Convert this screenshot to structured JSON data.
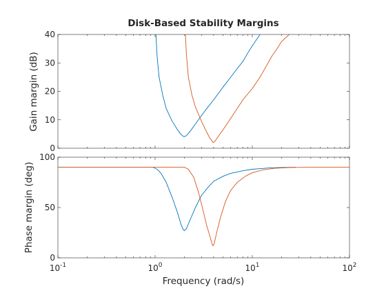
{
  "chart_data": {
    "type": "line",
    "title": "Disk-Based Stability Margins",
    "xlabel": "Frequency (rad/s)",
    "xscale": "log",
    "xlim": [
      0.1,
      100
    ],
    "x_ticks": [
      {
        "base": "10",
        "exp": "-1"
      },
      {
        "base": "10",
        "exp": "0"
      },
      {
        "base": "10",
        "exp": "1"
      },
      {
        "base": "10",
        "exp": "2"
      }
    ],
    "colors": [
      "#0072bd",
      "#d95319"
    ],
    "panels": [
      {
        "ylabel": "Gain margin (dB)",
        "ylim": [
          0,
          40
        ],
        "yticks": [
          "0",
          "10",
          "20",
          "30",
          "40"
        ],
        "series": [
          {
            "color": "#0072bd",
            "x": [
              1.02,
              1.05,
              1.1,
              1.2,
              1.3,
              1.5,
              1.7,
              1.85,
              1.95,
              2.0,
              2.1,
              2.3,
              2.6,
              3.0,
              3.5,
              4.0,
              5.0,
              6.0,
              7.0,
              8.0,
              9.0,
              10.0,
              12.0
            ],
            "y": [
              40,
              32,
              25,
              18.5,
              14,
              9.5,
              6.5,
              4.8,
              4.2,
              4.1,
              4.4,
              6,
              8.5,
              11.5,
              14.5,
              17,
              21.5,
              25,
              28,
              30.5,
              33.5,
              36,
              40
            ]
          },
          {
            "color": "#d95319",
            "x": [
              2.05,
              2.1,
              2.2,
              2.4,
              2.6,
              3.0,
              3.3,
              3.6,
              3.8,
              3.95,
              4.1,
              4.4,
              5.0,
              6.0,
              7.0,
              8.0,
              10.0,
              12.0,
              14.0,
              16.0,
              18.0,
              20.0,
              24.0
            ],
            "y": [
              40,
              33,
              25,
              18.5,
              14.5,
              9.5,
              6.5,
              4,
              2.8,
              2.0,
              2.3,
              3.8,
              6.5,
              10.5,
              14,
              17,
              21,
              25,
              29,
              32.5,
              35,
              37.5,
              40
            ]
          }
        ]
      },
      {
        "ylabel": "Phase margin (deg)",
        "ylim": [
          0,
          100
        ],
        "yticks": [
          "0",
          "50",
          "100"
        ],
        "series": [
          {
            "color": "#0072bd",
            "x": [
              0.1,
              0.95,
              1.05,
              1.15,
              1.3,
              1.5,
              1.7,
              1.85,
              1.95,
              2.0,
              2.1,
              2.3,
              2.6,
              3.0,
              3.5,
              4.0,
              5.0,
              6.0,
              8.0,
              10.0,
              15.0,
              20.0,
              28.0
            ],
            "y": [
              90,
              90,
              88,
              84,
              75,
              60,
              45,
              33,
              28,
              27,
              29,
              38,
              50,
              62,
              70,
              76,
              81,
              84,
              86.5,
              88,
              89.3,
              89.8,
              90
            ]
          },
          {
            "color": "#d95319",
            "x": [
              0.1,
              2.0,
              2.2,
              2.5,
              2.8,
              3.1,
              3.4,
              3.7,
              3.85,
              3.95,
              4.05,
              4.3,
              4.7,
              5.3,
              6.0,
              7.0,
              8.5,
              10.0,
              13.0,
              17.0,
              25.0,
              40.0,
              100.0
            ],
            "y": [
              90,
              90,
              88,
              80,
              65,
              48,
              32,
              20,
              14,
              12,
              14,
              25,
              40,
              56,
              67,
              75,
              81,
              84.5,
              87.5,
              89,
              89.8,
              90,
              90
            ]
          }
        ]
      }
    ]
  }
}
